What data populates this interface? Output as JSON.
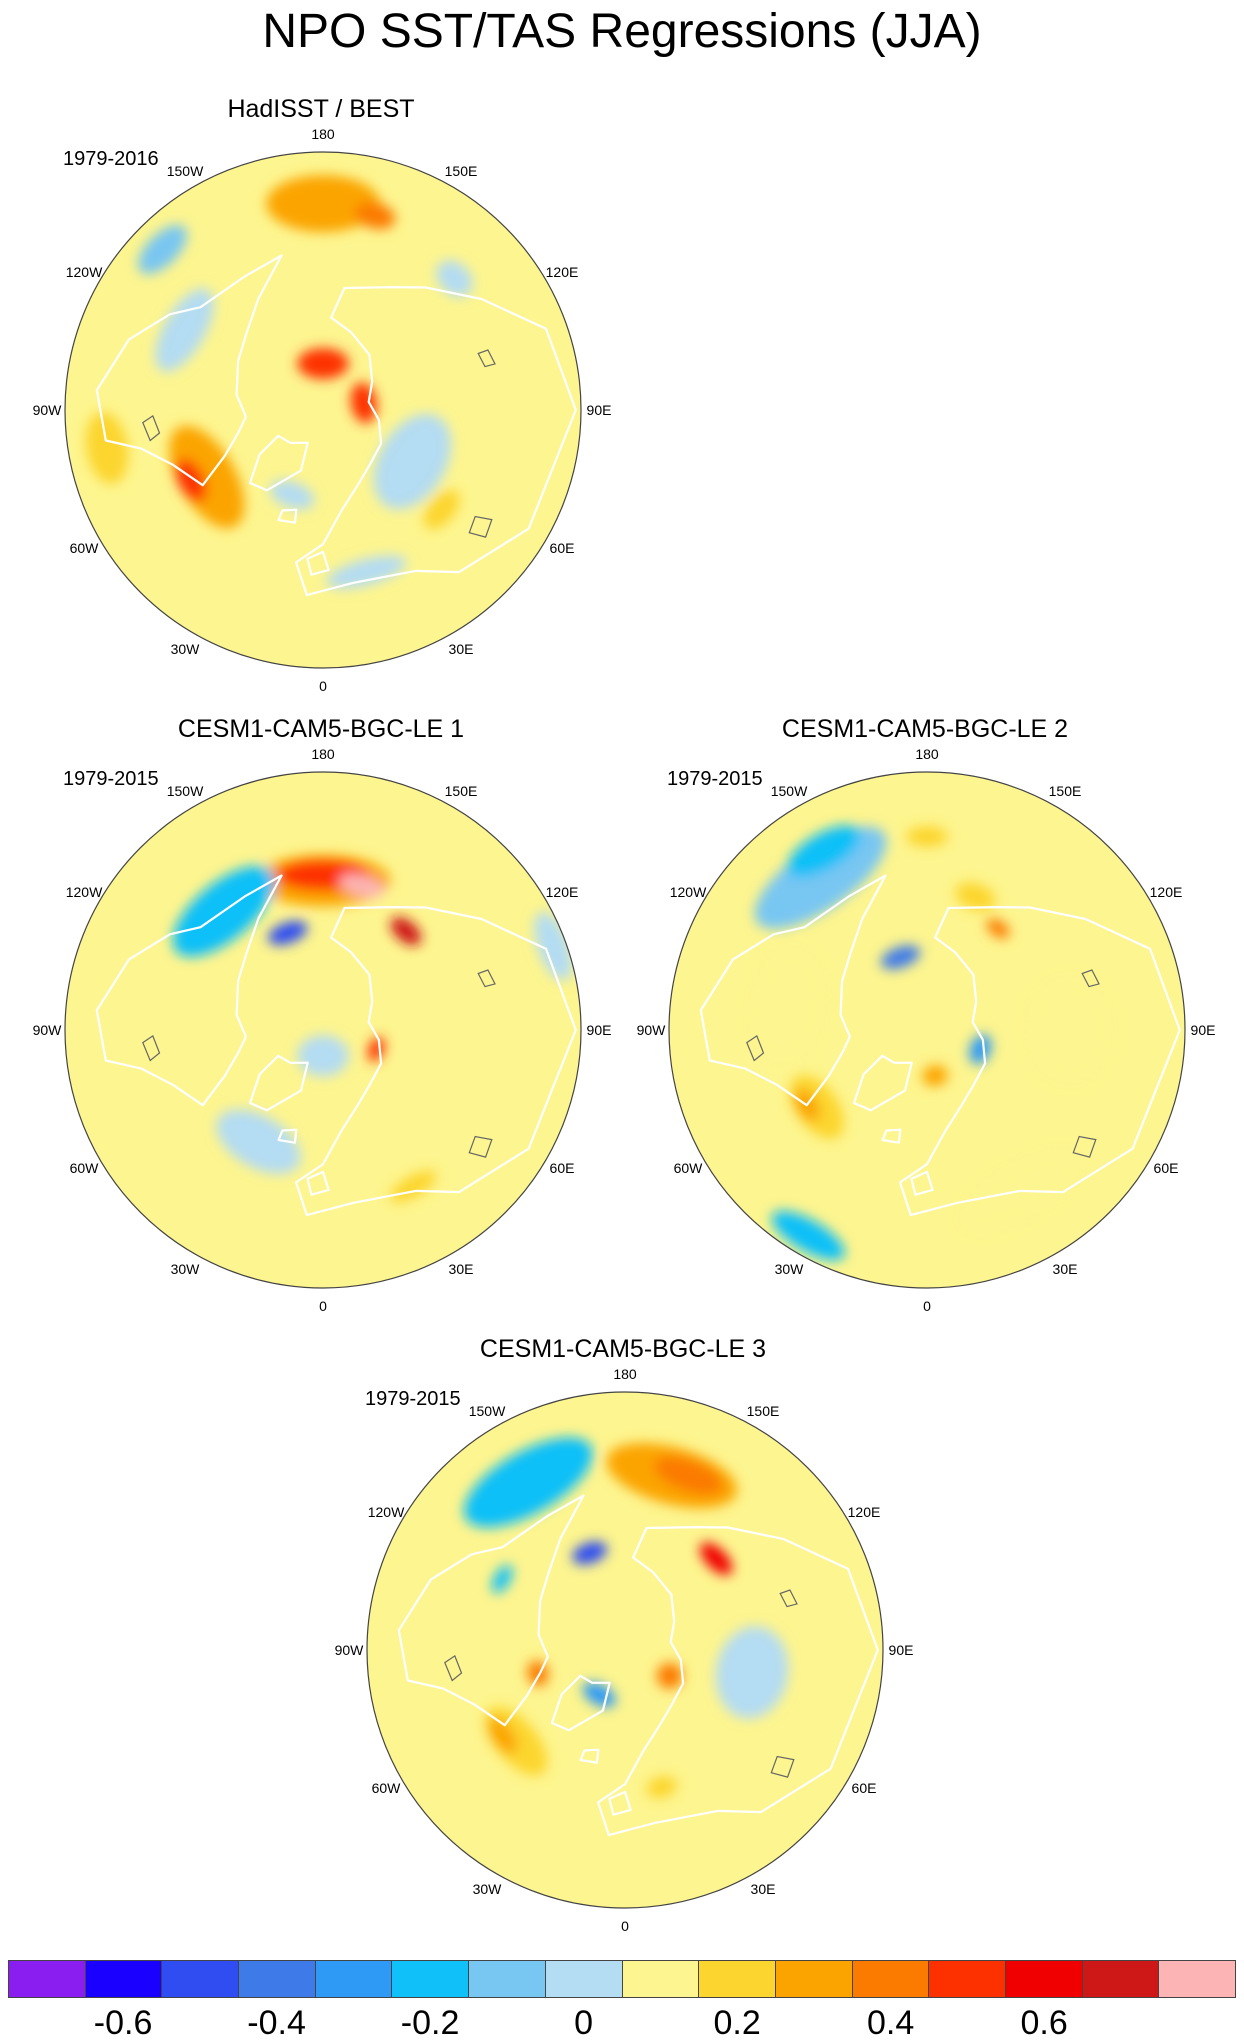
{
  "title": "NPO SST/TAS Regressions (JJA)",
  "colors": {
    "land_outline": "#ffffff",
    "lake_outline": "#666666",
    "rim": "#444444"
  },
  "palette": [
    "#8a1ef0",
    "#1a00ff",
    "#2f4df0",
    "#3f7be8",
    "#2f9af5",
    "#10c0f8",
    "#78c6f2",
    "#b4dcf2",
    "#fdf58f",
    "#fcd52e",
    "#fba400",
    "#fb7a00",
    "#fd3000",
    "#f00000",
    "#ce1818",
    "#fcb4b4"
  ],
  "colorbar": {
    "tick_labels": [
      "-0.6",
      "-0.4",
      "-0.2",
      "0",
      "0.2",
      "0.4",
      "0.6"
    ],
    "tick_values": [
      -0.6,
      -0.4,
      -0.2,
      0,
      0.2,
      0.4,
      0.6
    ]
  },
  "longitude_labels": [
    "180",
    "150E",
    "120E",
    "90E",
    "60E",
    "30E",
    "0",
    "30W",
    "60W",
    "90W",
    "120W",
    "150W"
  ],
  "panels": [
    {
      "name": "HadISST / BEST",
      "period": "1979-2016",
      "patches": [
        {
          "lon": 180,
          "colat": 0.8,
          "rx": 0.22,
          "ry": 0.11,
          "cls": 10
        },
        {
          "lon": 165,
          "colat": 0.78,
          "rx": 0.08,
          "ry": 0.05,
          "cls": 11
        },
        {
          "lon": 135,
          "colat": 0.72,
          "rx": 0.08,
          "ry": 0.06,
          "cls": 7
        },
        {
          "lon": -135,
          "colat": 0.88,
          "rx": 0.12,
          "ry": 0.06,
          "cls": 6
        },
        {
          "lon": -120,
          "colat": 0.62,
          "rx": 0.18,
          "ry": 0.08,
          "cls": 7
        },
        {
          "lon": 60,
          "colat": 0.4,
          "rx": 0.2,
          "ry": 0.13,
          "cls": 7
        },
        {
          "lon": 180,
          "colat": 0.18,
          "rx": 0.1,
          "ry": 0.06,
          "cls": 12
        },
        {
          "lon": 100,
          "colat": 0.16,
          "rx": 0.08,
          "ry": 0.05,
          "cls": 12
        },
        {
          "lon": -60,
          "colat": 0.52,
          "rx": 0.22,
          "ry": 0.11,
          "cls": 10
        },
        {
          "lon": -62,
          "colat": 0.58,
          "rx": 0.09,
          "ry": 0.05,
          "cls": 12
        },
        {
          "lon": -80,
          "colat": 0.85,
          "rx": 0.14,
          "ry": 0.08,
          "cls": 9
        },
        {
          "lon": 50,
          "colat": 0.6,
          "rx": 0.09,
          "ry": 0.05,
          "cls": 9
        },
        {
          "lon": 15,
          "colat": 0.65,
          "rx": 0.16,
          "ry": 0.05,
          "cls": 7
        },
        {
          "lon": -20,
          "colat": 0.35,
          "rx": 0.09,
          "ry": 0.05,
          "cls": 7
        }
      ]
    },
    {
      "name": "CESM1-CAM5-BGC-LE 1",
      "period": "1979-2015",
      "patches": [
        {
          "lon": 180,
          "colat": 0.58,
          "rx": 0.26,
          "ry": 0.1,
          "cls": 10
        },
        {
          "lon": 180,
          "colat": 0.6,
          "rx": 0.18,
          "ry": 0.06,
          "cls": 12
        },
        {
          "lon": 165,
          "colat": 0.58,
          "rx": 0.09,
          "ry": 0.04,
          "cls": 15
        },
        {
          "lon": 140,
          "colat": 0.5,
          "rx": 0.07,
          "ry": 0.04,
          "cls": 14
        },
        {
          "lon": -140,
          "colat": 0.6,
          "rx": 0.24,
          "ry": 0.11,
          "cls": 5
        },
        {
          "lon": -160,
          "colat": 0.4,
          "rx": 0.08,
          "ry": 0.04,
          "cls": 2
        },
        {
          "lon": 110,
          "colat": 0.95,
          "rx": 0.14,
          "ry": 0.06,
          "cls": 7
        },
        {
          "lon": -30,
          "colat": 0.5,
          "rx": 0.18,
          "ry": 0.1,
          "cls": 7
        },
        {
          "lon": 0,
          "colat": 0.1,
          "rx": 0.1,
          "ry": 0.08,
          "cls": 7
        },
        {
          "lon": 70,
          "colat": 0.22,
          "rx": 0.05,
          "ry": 0.03,
          "cls": 12
        },
        {
          "lon": 30,
          "colat": 0.7,
          "rx": 0.1,
          "ry": 0.04,
          "cls": 9
        }
      ]
    },
    {
      "name": "CESM1-CAM5-BGC-LE 2",
      "period": "1979-2015",
      "patches": [
        {
          "lon": -145,
          "colat": 0.72,
          "rx": 0.3,
          "ry": 0.12,
          "cls": 6
        },
        {
          "lon": -150,
          "colat": 0.8,
          "rx": 0.16,
          "ry": 0.07,
          "cls": 5
        },
        {
          "lon": 160,
          "colat": 0.55,
          "rx": 0.08,
          "ry": 0.05,
          "cls": 9
        },
        {
          "lon": 145,
          "colat": 0.48,
          "rx": 0.05,
          "ry": 0.03,
          "cls": 11
        },
        {
          "lon": 180,
          "colat": 0.75,
          "rx": 0.08,
          "ry": 0.04,
          "cls": 9
        },
        {
          "lon": -160,
          "colat": 0.3,
          "rx": 0.08,
          "ry": 0.04,
          "cls": 3
        },
        {
          "lon": 70,
          "colat": 0.22,
          "rx": 0.06,
          "ry": 0.04,
          "cls": 4
        },
        {
          "lon": -55,
          "colat": 0.52,
          "rx": 0.14,
          "ry": 0.08,
          "cls": 9
        },
        {
          "lon": -58,
          "colat": 0.55,
          "rx": 0.07,
          "ry": 0.04,
          "cls": 10
        },
        {
          "lon": 10,
          "colat": 0.18,
          "rx": 0.05,
          "ry": 0.04,
          "cls": 10
        },
        {
          "lon": 30,
          "colat": 0.72,
          "rx": 0.26,
          "ry": 0.1,
          "cls": 8
        },
        {
          "lon": -100,
          "colat": 0.55,
          "rx": 0.22,
          "ry": 0.14,
          "cls": 8
        },
        {
          "lon": 90,
          "colat": 0.55,
          "rx": 0.2,
          "ry": 0.16,
          "cls": 8
        },
        {
          "lon": -30,
          "colat": 0.92,
          "rx": 0.16,
          "ry": 0.06,
          "cls": 5
        }
      ]
    },
    {
      "name": "CESM1-CAM5-BGC-LE 3",
      "period": "1979-2015",
      "patches": [
        {
          "lon": 165,
          "colat": 0.7,
          "rx": 0.26,
          "ry": 0.11,
          "cls": 10
        },
        {
          "lon": 160,
          "colat": 0.72,
          "rx": 0.14,
          "ry": 0.06,
          "cls": 11
        },
        {
          "lon": 135,
          "colat": 0.5,
          "rx": 0.08,
          "ry": 0.04,
          "cls": 13
        },
        {
          "lon": -150,
          "colat": 0.75,
          "rx": 0.28,
          "ry": 0.12,
          "cls": 5
        },
        {
          "lon": -160,
          "colat": 0.4,
          "rx": 0.07,
          "ry": 0.04,
          "cls": 2
        },
        {
          "lon": -120,
          "colat": 0.55,
          "rx": 0.06,
          "ry": 0.03,
          "cls": 5
        },
        {
          "lon": -50,
          "colat": 0.55,
          "rx": 0.16,
          "ry": 0.08,
          "cls": 9
        },
        {
          "lon": -55,
          "colat": 0.58,
          "rx": 0.08,
          "ry": 0.04,
          "cls": 10
        },
        {
          "lon": -30,
          "colat": 0.2,
          "rx": 0.07,
          "ry": 0.04,
          "cls": 4
        },
        {
          "lon": 60,
          "colat": 0.2,
          "rx": 0.05,
          "ry": 0.05,
          "cls": 11
        },
        {
          "lon": -75,
          "colat": 0.35,
          "rx": 0.05,
          "ry": 0.04,
          "cls": 11
        },
        {
          "lon": 80,
          "colat": 0.5,
          "rx": 0.18,
          "ry": 0.14,
          "cls": 7
        },
        {
          "lon": 15,
          "colat": 0.55,
          "rx": 0.06,
          "ry": 0.04,
          "cls": 9
        }
      ]
    }
  ]
}
